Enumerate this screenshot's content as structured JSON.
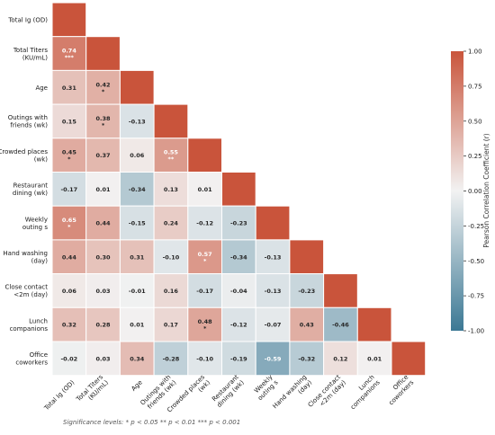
{
  "chart_data": {
    "type": "heatmap",
    "variables": [
      "Total Ig (OD)",
      "Total Titers\n(KU/mL)",
      "Age",
      "Outings with\nfriends (wk)",
      "Crowded places\n(wk)",
      "Restaurant\ndining (wk)",
      "Weekly\nouting s",
      "Hand washing\n(day)",
      "Close contact\n<2m (day)",
      "Lunch\ncompanions",
      "Office\ncoworkers"
    ],
    "x_tick_labels": [
      "Total Ig (OD)",
      "Total Titers\n(KU/mL)",
      "Age",
      "Outings with\nfriends (wk)",
      "Crowded places\n(wk)",
      "Restaurant\ndining (wk)",
      "Weekly\nouting s",
      "Hand washing\n(day)",
      "Close contact\n<2m (day)",
      "Lunch\ncompanions",
      "Office\ncoworkers"
    ],
    "matrix_lower": [
      [
        1.0
      ],
      [
        0.74,
        1.0
      ],
      [
        0.31,
        0.42,
        1.0
      ],
      [
        0.15,
        0.38,
        -0.13,
        1.0
      ],
      [
        0.45,
        0.37,
        0.06,
        0.55,
        1.0
      ],
      [
        -0.17,
        0.01,
        -0.34,
        0.13,
        0.01,
        1.0
      ],
      [
        0.65,
        0.44,
        -0.15,
        0.24,
        -0.12,
        -0.23,
        1.0
      ],
      [
        0.44,
        0.3,
        0.31,
        -0.1,
        0.57,
        -0.34,
        -0.13,
        1.0
      ],
      [
        0.06,
        0.03,
        -0.01,
        0.16,
        -0.17,
        -0.04,
        -0.13,
        -0.23,
        1.0
      ],
      [
        0.32,
        0.28,
        0.01,
        0.17,
        0.48,
        -0.12,
        -0.07,
        0.43,
        -0.46,
        1.0
      ],
      [
        -0.02,
        0.03,
        0.34,
        -0.28,
        -0.1,
        -0.19,
        -0.59,
        -0.32,
        0.12,
        0.01,
        1.0
      ]
    ],
    "significance_marks": [
      {
        "row": 1,
        "col": 0,
        "mark": "***"
      },
      {
        "row": 2,
        "col": 1,
        "mark": "*"
      },
      {
        "row": 3,
        "col": 1,
        "mark": "*"
      },
      {
        "row": 4,
        "col": 0,
        "mark": "*"
      },
      {
        "row": 4,
        "col": 3,
        "mark": "**"
      },
      {
        "row": 6,
        "col": 0,
        "mark": "*"
      },
      {
        "row": 7,
        "col": 4,
        "mark": "*"
      },
      {
        "row": 9,
        "col": 4,
        "mark": "*"
      }
    ],
    "colorbar": {
      "label": "Pearson Correlation Coefficient (r)",
      "min": -1.0,
      "max": 1.0,
      "ticks": [
        "1.00",
        "0.75",
        "0.50",
        "0.25",
        "0.00",
        "-0.25",
        "-0.50",
        "-0.75",
        "-1.00"
      ],
      "color_negative": "#3b7894",
      "color_neutral": "#f2f2f2",
      "color_positive": "#c9543b"
    },
    "significance_note": "Significance levels:  * p < 0.05    ** p < 0.01    *** p < 0.001"
  }
}
